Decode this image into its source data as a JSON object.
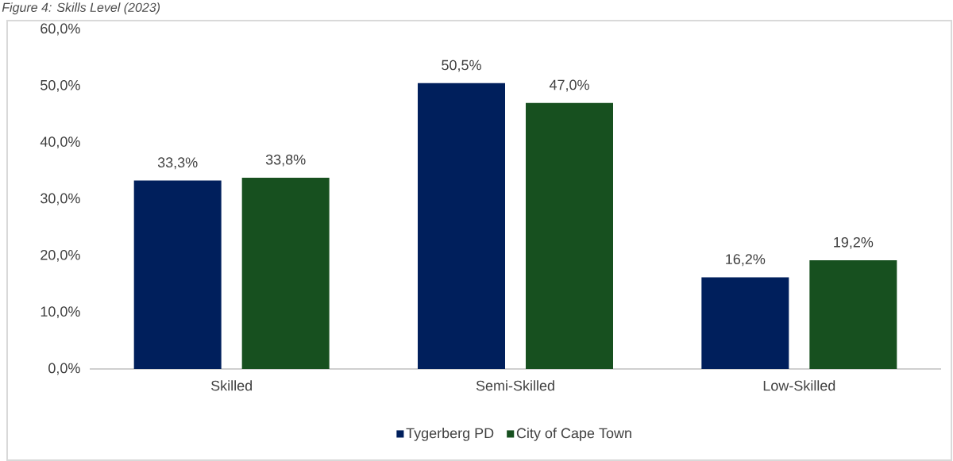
{
  "chart_data": {
    "type": "bar",
    "title": "Figure 4: Skills Level (2023)",
    "categories": [
      "Skilled",
      "Semi-Skilled",
      "Low-Skilled"
    ],
    "series": [
      {
        "name": "Tygerberg PD",
        "color": "#001f5c",
        "values": [
          33.3,
          50.5,
          16.2
        ],
        "value_labels": [
          "33,3%",
          "50,5%",
          "16,2%"
        ]
      },
      {
        "name": "City of Cape Town",
        "color": "#17501f",
        "values": [
          33.8,
          47.0,
          19.2
        ],
        "value_labels": [
          "33,8%",
          "47,0%",
          "19,2%"
        ]
      }
    ],
    "ylim": [
      0,
      60
    ],
    "yticks": [
      {
        "value": 0,
        "label": "0,0%"
      },
      {
        "value": 10,
        "label": "10,0%"
      },
      {
        "value": 20,
        "label": "20,0%"
      },
      {
        "value": 30,
        "label": "30,0%"
      },
      {
        "value": 40,
        "label": "40,0%"
      },
      {
        "value": 50,
        "label": "50,0%"
      },
      {
        "value": 60,
        "label": "60,0%"
      }
    ],
    "legend": "bottom"
  }
}
